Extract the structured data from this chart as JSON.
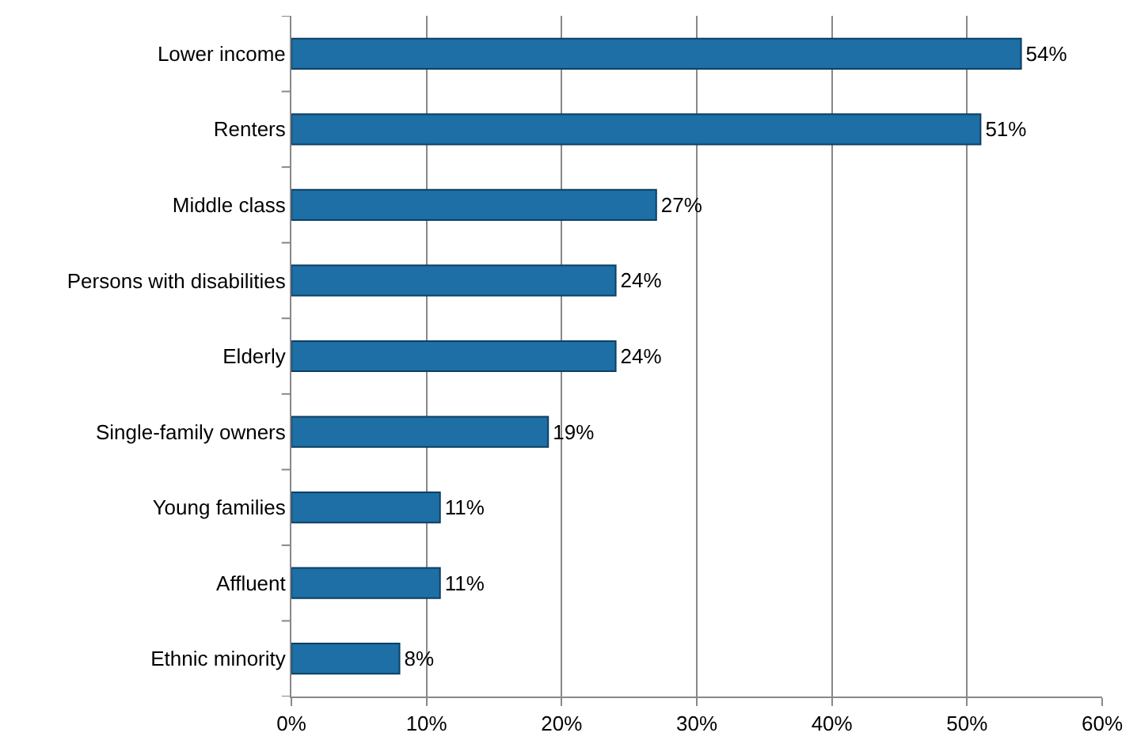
{
  "chart_data": {
    "type": "bar",
    "orientation": "horizontal",
    "categories": [
      "Lower income",
      "Renters",
      "Middle class",
      "Persons with disabilities",
      "Elderly",
      "Single-family owners",
      "Young families",
      "Affluent",
      "Ethnic minority"
    ],
    "values": [
      54,
      51,
      27,
      24,
      24,
      19,
      11,
      11,
      8
    ],
    "value_labels": [
      "54%",
      "51%",
      "27%",
      "24%",
      "24%",
      "19%",
      "11%",
      "11%",
      "8%"
    ],
    "color": "#1d6fa5",
    "xlim": [
      0,
      60
    ],
    "xticks": [
      {
        "value": 0,
        "label": "0%"
      },
      {
        "value": 10,
        "label": "10%"
      },
      {
        "value": 20,
        "label": "20%"
      },
      {
        "value": 30,
        "label": "30%"
      },
      {
        "value": 40,
        "label": "40%"
      },
      {
        "value": 50,
        "label": "50%"
      },
      {
        "value": 60,
        "label": "60%"
      }
    ],
    "grid": "x",
    "legend": false
  }
}
